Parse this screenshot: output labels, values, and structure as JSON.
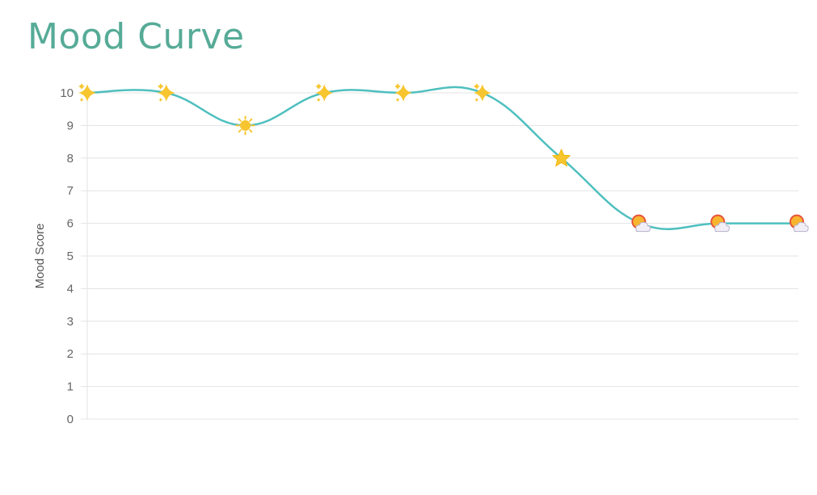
{
  "title": "Mood Curve",
  "colors": {
    "title": "#56ab97",
    "line": "#4fbfbf",
    "grid": "#e3e3e3",
    "axis": "#cccccc"
  },
  "chart_data": {
    "type": "line",
    "title": "Mood Curve",
    "xlabel": "",
    "ylabel": "Mood Score",
    "ylim": [
      0,
      10
    ],
    "yticks": [
      0,
      1,
      2,
      3,
      4,
      5,
      6,
      7,
      8,
      9,
      10
    ],
    "grid": true,
    "legend": "none",
    "curve": "smooth",
    "point_style": "emoji",
    "x": [
      1,
      2,
      3,
      4,
      5,
      6,
      7,
      8,
      9,
      10
    ],
    "series": [
      {
        "values": [
          10,
          10,
          9,
          10,
          10,
          10,
          8,
          6,
          6,
          6
        ],
        "markers": [
          "sparkles-icon",
          "sparkles-icon",
          "sun-icon",
          "sparkles-icon",
          "sparkles-icon",
          "sparkles-icon",
          "star-icon",
          "sun-behind-cloud-icon",
          "sun-behind-cloud-icon",
          "sun-behind-cloud-icon"
        ]
      }
    ]
  }
}
